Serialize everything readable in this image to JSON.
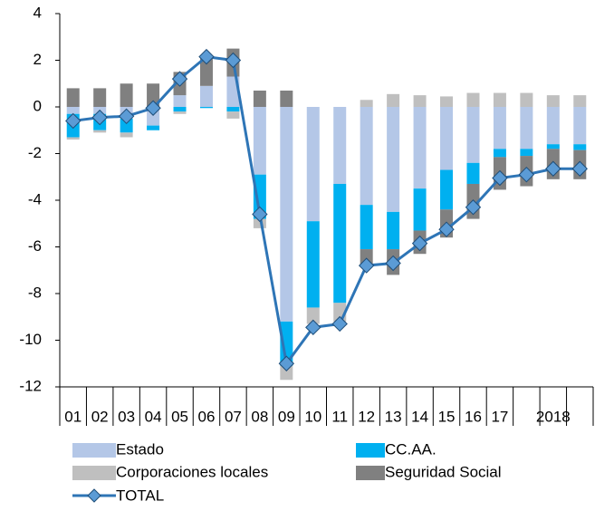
{
  "chart_data": {
    "type": "stacked_bar_line",
    "categories": [
      "01",
      "02",
      "03",
      "04",
      "05",
      "06",
      "07",
      "08",
      "09",
      "10",
      "11",
      "12",
      "13",
      "14",
      "15",
      "16",
      "17",
      null,
      "2018",
      null
    ],
    "series": [
      {
        "name": "Estado",
        "color": "#b4c7e7",
        "values": [
          -0.3,
          -0.3,
          -0.5,
          -0.8,
          0.5,
          0.9,
          1.3,
          -2.9,
          -9.2,
          -4.9,
          -3.3,
          -4.2,
          -4.5,
          -3.5,
          -2.7,
          -2.4,
          -1.8,
          -1.8,
          -1.6,
          -1.6
        ]
      },
      {
        "name": "CC.AA.",
        "color": "#00b0f0",
        "values": [
          -1.0,
          -0.7,
          -0.6,
          -0.2,
          -0.2,
          -0.05,
          -0.2,
          -1.9,
          -1.9,
          -3.7,
          -5.1,
          -1.9,
          -1.6,
          -1.8,
          -1.7,
          -0.9,
          -0.35,
          -0.3,
          -0.2,
          -0.25
        ]
      },
      {
        "name": "Corporaciones locales",
        "color": "#bfbfbf",
        "values": [
          -0.1,
          -0.1,
          -0.2,
          0,
          -0.1,
          0,
          -0.3,
          -0.4,
          -0.6,
          -0.7,
          -0.8,
          0.3,
          0.55,
          0.5,
          0.45,
          0.6,
          0.6,
          0.6,
          0.5,
          0.5
        ]
      },
      {
        "name": "Seguridad Social",
        "color": "#808080",
        "values": [
          0.8,
          0.8,
          1.0,
          1.0,
          1.0,
          1.2,
          1.2,
          0.7,
          0.7,
          0,
          0,
          -0.7,
          -1.1,
          -1.0,
          -1.2,
          -1.5,
          -1.4,
          -1.3,
          -1.3,
          -1.25
        ]
      }
    ],
    "line": {
      "name": "TOTAL",
      "color": "#2e75b6",
      "marker_color": "#5b9bd5",
      "values": [
        -0.6,
        -0.45,
        -0.4,
        -0.05,
        1.2,
        2.15,
        2.0,
        -4.6,
        -11.0,
        -9.45,
        -9.3,
        -6.8,
        -6.7,
        -5.85,
        -5.25,
        -4.3,
        -3.05,
        -2.9,
        -2.65,
        -2.65
      ]
    },
    "ylim": [
      -12,
      4
    ],
    "yticks": [
      -12,
      -10,
      -8,
      -6,
      -4,
      -2,
      0,
      2,
      4
    ],
    "grid": false
  }
}
